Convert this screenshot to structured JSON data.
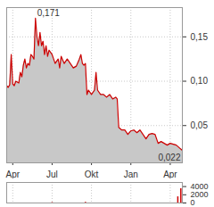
{
  "chart_data": [
    {
      "type": "area",
      "color": "#cc0000",
      "grid": true,
      "x": [
        -2,
        -1.5,
        -1,
        -0.5,
        0,
        0.5,
        1,
        2,
        2.5,
        3,
        3.5,
        4,
        4.5,
        5,
        5.5,
        6,
        6.5,
        7,
        7.5,
        8,
        8.5,
        9,
        9.5,
        10,
        10.5,
        11,
        11.5,
        12,
        13,
        13.5,
        14,
        15,
        15.5,
        16,
        17,
        18,
        19,
        20,
        21,
        22,
        22.5,
        23,
        23.5,
        24,
        24.5,
        25,
        26,
        27,
        27.5,
        28,
        29,
        30,
        31,
        32,
        33,
        34,
        34.5,
        35,
        36,
        37,
        38,
        39,
        40,
        41,
        42,
        43,
        44,
        45,
        46,
        47,
        48,
        49,
        50,
        51,
        52,
        53,
        54,
        55,
        56
      ],
      "values": [
        0.095,
        0.093,
        0.096,
        0.13,
        0.097,
        0.095,
        0.1,
        0.098,
        0.11,
        0.105,
        0.118,
        0.125,
        0.115,
        0.12,
        0.118,
        0.13,
        0.128,
        0.125,
        0.171,
        0.15,
        0.14,
        0.155,
        0.14,
        0.145,
        0.13,
        0.14,
        0.128,
        0.135,
        0.13,
        0.125,
        0.12,
        0.125,
        0.115,
        0.128,
        0.12,
        0.125,
        0.12,
        0.115,
        0.117,
        0.125,
        0.13,
        0.12,
        0.118,
        0.12,
        0.085,
        0.09,
        0.085,
        0.09,
        0.11,
        0.09,
        0.085,
        0.085,
        0.082,
        0.085,
        0.08,
        0.082,
        0.08,
        0.048,
        0.045,
        0.045,
        0.04,
        0.044,
        0.045,
        0.042,
        0.045,
        0.04,
        0.035,
        0.04,
        0.041,
        0.04,
        0.03,
        0.032,
        0.03,
        0.028,
        0.03,
        0.029,
        0.028,
        0.025,
        0.022
      ],
      "xlim": [
        -2,
        56
      ],
      "xticks": [
        {
          "value": 0,
          "label": "Apr"
        },
        {
          "value": 13,
          "label": "Jul"
        },
        {
          "value": 26,
          "label": "Okt"
        },
        {
          "value": 39,
          "label": "Jan"
        },
        {
          "value": 52,
          "label": "Apr"
        }
      ],
      "ylim": [
        0.008,
        0.183
      ],
      "yticks": [
        {
          "value": 0.05,
          "label": "0,05"
        },
        {
          "value": 0.1,
          "label": "0,10"
        },
        {
          "value": 0.15,
          "label": "0,15"
        }
      ],
      "annotations": [
        {
          "x": 7.5,
          "y": 0.171,
          "text": "0,171"
        },
        {
          "x": 56,
          "y": 0.022,
          "text": "0,022"
        }
      ]
    },
    {
      "type": "bar",
      "color": "#cc0000",
      "grid": true,
      "tick_labels": "y",
      "x": [
        13,
        24,
        54.5,
        55.5
      ],
      "values": [
        100,
        150,
        1500,
        3500
      ],
      "xlim": [
        -2,
        56
      ],
      "xticks": [
        0,
        13,
        26,
        39,
        52
      ],
      "ylim": [
        0,
        5000
      ],
      "yticks": [
        0,
        2000,
        4000
      ]
    }
  ]
}
